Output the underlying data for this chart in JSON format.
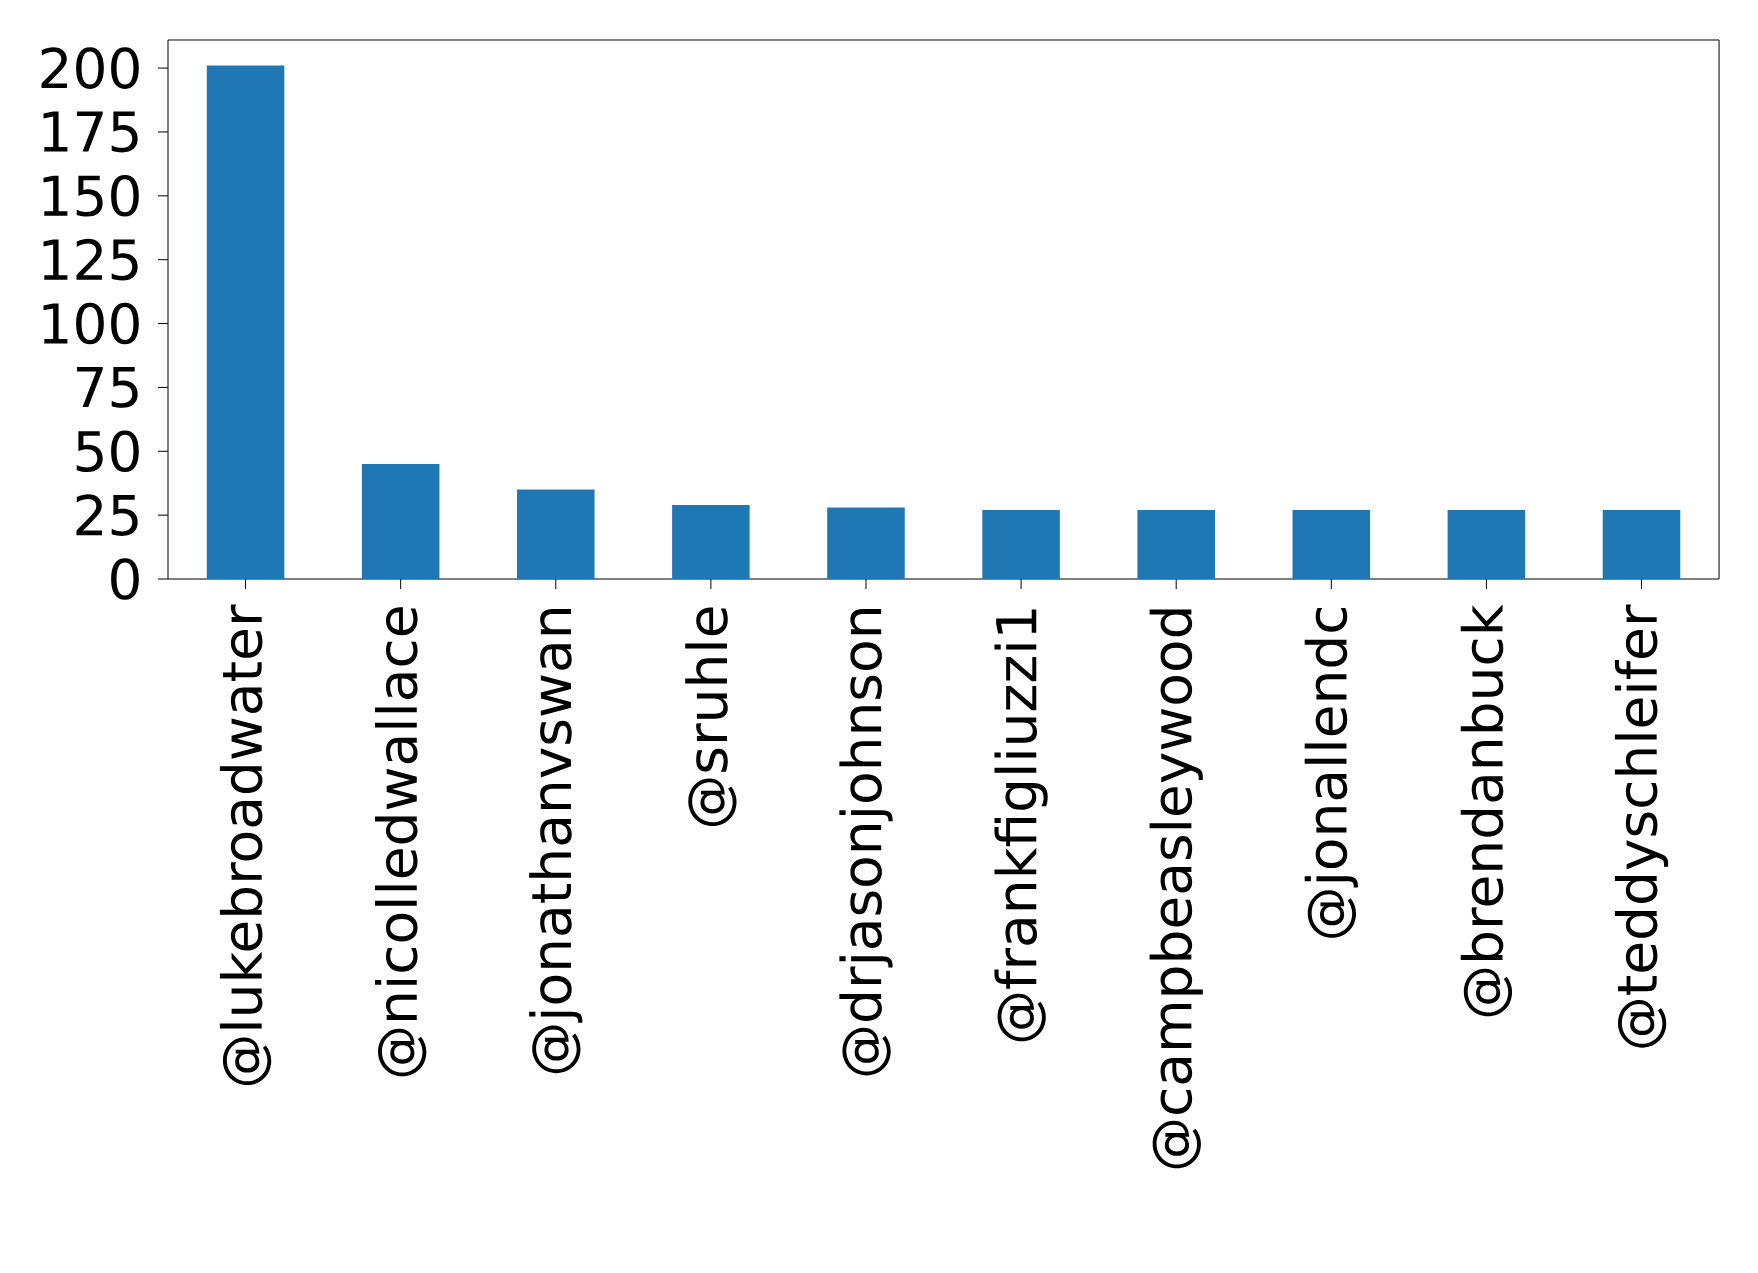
{
  "chart_data": {
    "type": "bar",
    "categories": [
      "@lukebroadwater",
      "@nicolledwallace",
      "@jonathanvswan",
      "@sruhle",
      "@drjasonjohnson",
      "@frankfigliuzzi1",
      "@campbeasleywood",
      "@jonallendc",
      "@brendanbuck",
      "@teddyschleifer"
    ],
    "values": [
      201,
      45,
      35,
      29,
      28,
      27,
      27,
      27,
      27,
      27
    ],
    "color": "#1f77b4",
    "ylim": [
      0,
      211
    ],
    "yticks": [
      0,
      25,
      50,
      75,
      100,
      125,
      150,
      175,
      200
    ],
    "grid": false
  }
}
